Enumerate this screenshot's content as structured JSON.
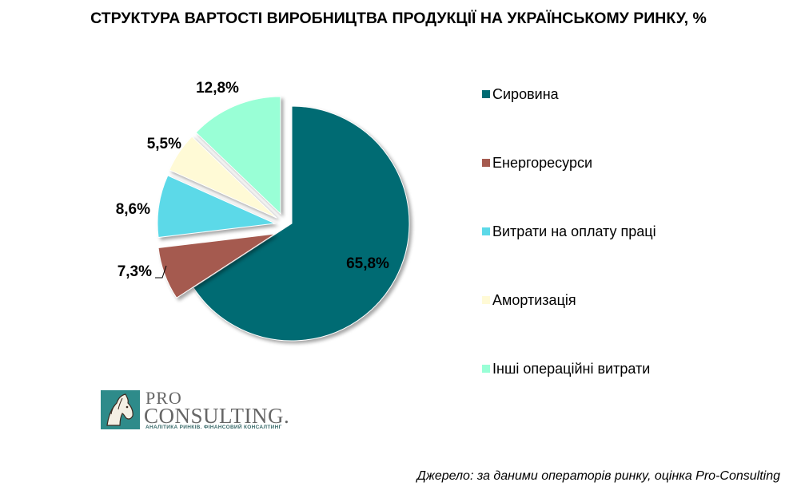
{
  "chart_data": {
    "type": "pie",
    "title": "СТРУКТУРА ВАРТОСТІ ВИРОБНИЦТВА ПРОДУКЦІЇ НА УКРАЇНСЬКОМУ РИНКУ, %",
    "categories": [
      "Сировина",
      "Енергоресурси",
      "Витрати на оплату праці",
      "Амортизація",
      "Інші операційні витрати"
    ],
    "values": [
      65.8,
      7.3,
      8.6,
      5.5,
      12.8
    ],
    "data_labels": [
      "65,8%",
      "7,3%",
      "8,6%",
      "5,5%",
      "12,8%"
    ],
    "colors": [
      "#006b73",
      "#a55a4f",
      "#5cd9e8",
      "#fffad6",
      "#99ffd6"
    ],
    "exploded": true,
    "start": "12 o'clock, clockwise",
    "legend_position": "right"
  },
  "logo": {
    "pro": "PRO",
    "consulting": "CONSULTING.",
    "tagline": "АНАЛІТИКА РИНКІВ. ФІНАНСОВИЙ КОНСАЛТИНГ"
  },
  "source_note": "Джерело: за даними операторів ринку, оцінка Pro-Consulting"
}
